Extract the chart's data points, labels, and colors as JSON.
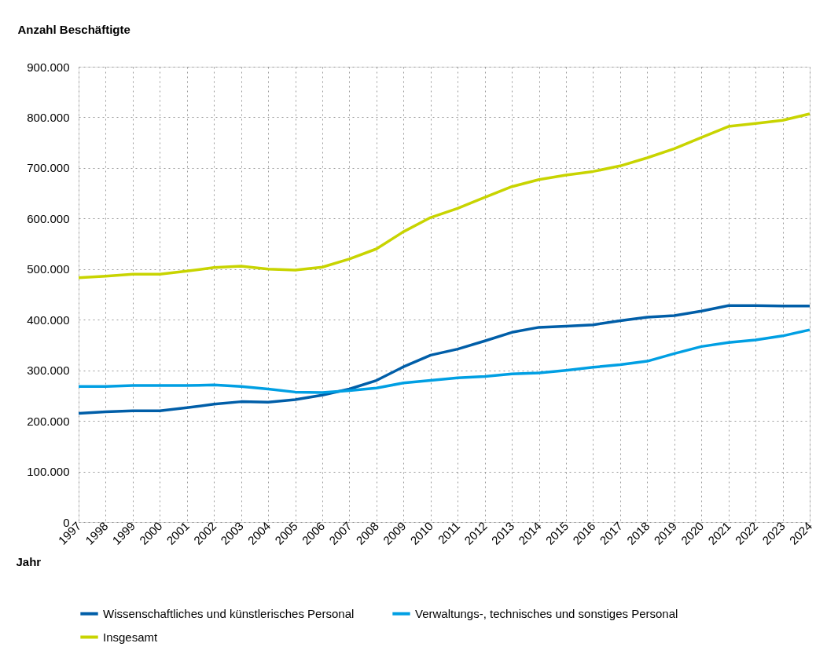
{
  "chart_data": {
    "type": "line",
    "ylabel": "Anzahl Beschäftigte",
    "xlabel": "Jahr",
    "categories": [
      "1997",
      "1998",
      "1999",
      "2000",
      "2001",
      "2002",
      "2003",
      "2004",
      "2005",
      "2006",
      "2007",
      "2008",
      "2009",
      "2010",
      "2011",
      "2012",
      "2013",
      "2014",
      "2015",
      "2016",
      "2017",
      "2018",
      "2019",
      "2020",
      "2021",
      "2022",
      "2023",
      "2024"
    ],
    "series": [
      {
        "name": "Wissenschaftliches und künstlerisches Personal",
        "color": "#005ea8",
        "values": [
          215000,
          218000,
          220000,
          220000,
          226000,
          233000,
          238000,
          237000,
          242000,
          251000,
          263000,
          280000,
          307000,
          330000,
          342000,
          358000,
          375000,
          385000,
          387000,
          390000,
          398000,
          405000,
          408000,
          417000,
          428000,
          428000,
          427000,
          427000
        ]
      },
      {
        "name": "Verwaltungs-, technisches und sonstiges Personal",
        "color": "#009fe3",
        "values": [
          268000,
          268000,
          270000,
          270000,
          270000,
          271000,
          268000,
          263000,
          257000,
          256000,
          260000,
          265000,
          275000,
          280000,
          285000,
          288000,
          293000,
          295000,
          300000,
          306000,
          311000,
          318000,
          333000,
          347000,
          355000,
          360000,
          368000,
          380000
        ]
      },
      {
        "name": "Insgesamt",
        "color": "#c8d400",
        "values": [
          483000,
          486000,
          490000,
          490000,
          496000,
          503000,
          506000,
          500000,
          498000,
          504000,
          520000,
          540000,
          574000,
          602000,
          620000,
          642000,
          663000,
          677000,
          686000,
          693000,
          704000,
          720000,
          738000,
          760000,
          782000,
          788000,
          794000,
          807000
        ]
      }
    ],
    "ylim": [
      0,
      900000
    ],
    "yticks": [
      {
        "value": 0,
        "label": "0"
      },
      {
        "value": 100000,
        "label": "100.000"
      },
      {
        "value": 200000,
        "label": "200.000"
      },
      {
        "value": 300000,
        "label": "300.000"
      },
      {
        "value": 400000,
        "label": "400.000"
      },
      {
        "value": 500000,
        "label": "500.000"
      },
      {
        "value": 600000,
        "label": "600.000"
      },
      {
        "value": 700000,
        "label": "700.000"
      },
      {
        "value": 800000,
        "label": "800.000"
      },
      {
        "value": 900000,
        "label": "900.000"
      }
    ],
    "grid": true,
    "legend": "bottom",
    "line_style": "solid",
    "marker": "none"
  }
}
